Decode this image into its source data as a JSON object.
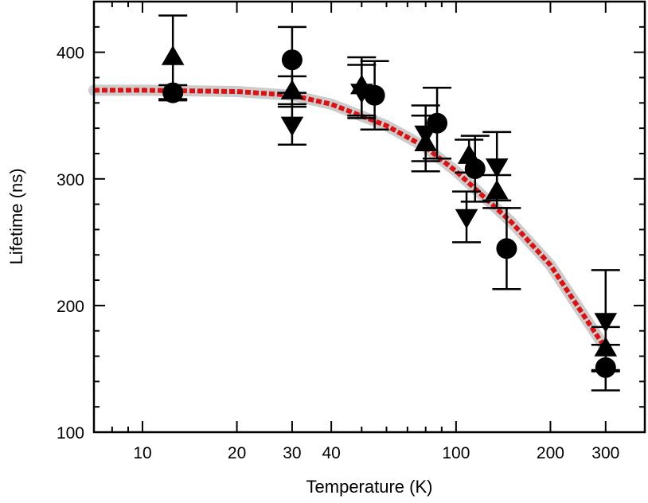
{
  "chart_data": {
    "type": "scatter",
    "xlabel": "Temperature (K)",
    "ylabel": "Lifetime (ns)",
    "xscale": "log",
    "xlim": [
      7,
      400
    ],
    "ylim": [
      100,
      440
    ],
    "xticks": [
      10,
      20,
      30,
      40,
      100,
      200,
      300
    ],
    "xtick_labels": [
      "10",
      "20",
      "30",
      "40",
      "100",
      "200",
      "300"
    ],
    "yticks": [
      100,
      200,
      300,
      400
    ],
    "ytick_labels": [
      "100",
      "200",
      "300",
      "400"
    ],
    "grid": false,
    "colors": {
      "markers": "#000000",
      "fit_line": "#dd1111",
      "fit_band": "#bbbbbb"
    },
    "series": [
      {
        "marker": "circle",
        "points": [
          {
            "x": 12.5,
            "y": 368,
            "err": 6
          },
          {
            "x": 30,
            "y": 394,
            "err": 26
          },
          {
            "x": 55,
            "y": 366,
            "err": 27
          },
          {
            "x": 87,
            "y": 344,
            "err": 28
          },
          {
            "x": 115,
            "y": 308,
            "err": 26
          },
          {
            "x": 145,
            "y": 245,
            "err": 32
          },
          {
            "x": 300,
            "y": 151,
            "err": 18
          }
        ]
      },
      {
        "marker": "triangle-up",
        "points": [
          {
            "x": 12.5,
            "y": 396,
            "err": 33
          },
          {
            "x": 30,
            "y": 369,
            "err": 12
          },
          {
            "x": 50,
            "y": 373,
            "err": 23
          },
          {
            "x": 80,
            "y": 328,
            "err": 22
          },
          {
            "x": 110,
            "y": 318,
            "err": 13
          },
          {
            "x": 135,
            "y": 290,
            "err": 13
          },
          {
            "x": 300,
            "y": 166,
            "err": 17
          }
        ]
      },
      {
        "marker": "triangle-down",
        "points": [
          {
            "x": 30,
            "y": 343,
            "err": 16
          },
          {
            "x": 50,
            "y": 369,
            "err": 21
          },
          {
            "x": 80,
            "y": 336,
            "err": 22
          },
          {
            "x": 108,
            "y": 270,
            "err": 20
          },
          {
            "x": 135,
            "y": 310,
            "err": 27
          },
          {
            "x": 300,
            "y": 188,
            "err": 40
          }
        ]
      }
    ],
    "fit_curve": {
      "style": "dashed",
      "x": [
        7,
        10,
        20,
        30,
        40,
        60,
        80,
        100,
        150,
        200,
        300
      ],
      "y": [
        370,
        370,
        369,
        366,
        359,
        342,
        325,
        306,
        266,
        232,
        166
      ]
    }
  }
}
